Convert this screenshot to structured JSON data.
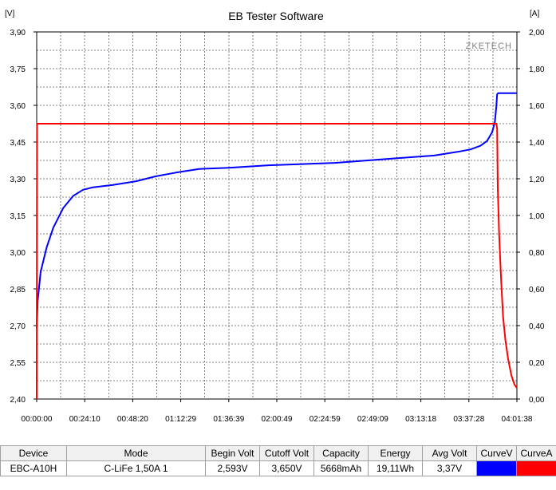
{
  "chart_data": {
    "type": "line",
    "title": "EB Tester Software",
    "brand": "ZKETECH",
    "y_left_unit": "[V]",
    "y_right_unit": "[A]",
    "y_left_range": [
      2.4,
      3.9
    ],
    "y_right_range": [
      0.0,
      2.0
    ],
    "x_range_seconds": [
      0,
      14498
    ],
    "x_tick_labels": [
      "00:00:00",
      "00:24:10",
      "00:48:20",
      "01:12:29",
      "01:36:39",
      "02:00:49",
      "02:24:59",
      "02:49:09",
      "03:13:18",
      "03:37:28",
      "04:01:38"
    ],
    "y_left_tick_labels": [
      "3,90",
      "3,75",
      "3,60",
      "3,45",
      "3,30",
      "3,15",
      "3,00",
      "2,85",
      "2,70",
      "2,55",
      "2,40"
    ],
    "y_right_tick_labels": [
      "2,00",
      "1,80",
      "1,60",
      "1,40",
      "1,20",
      "1,00",
      "0,80",
      "0,60",
      "0,40",
      "0,20",
      "0,00"
    ],
    "grid": true,
    "series": [
      {
        "name": "CurveV",
        "color": "#0000ff",
        "axis": "left",
        "points": [
          [
            0,
            2.69
          ],
          [
            30,
            2.8
          ],
          [
            120,
            2.92
          ],
          [
            300,
            3.02
          ],
          [
            500,
            3.1
          ],
          [
            800,
            3.18
          ],
          [
            1100,
            3.23
          ],
          [
            1400,
            3.255
          ],
          [
            1700,
            3.265
          ],
          [
            2300,
            3.275
          ],
          [
            3000,
            3.29
          ],
          [
            3600,
            3.31
          ],
          [
            4200,
            3.325
          ],
          [
            4900,
            3.34
          ],
          [
            5800,
            3.345
          ],
          [
            7000,
            3.355
          ],
          [
            8000,
            3.36
          ],
          [
            9000,
            3.365
          ],
          [
            10000,
            3.375
          ],
          [
            11000,
            3.385
          ],
          [
            12000,
            3.395
          ],
          [
            12700,
            3.41
          ],
          [
            13100,
            3.42
          ],
          [
            13400,
            3.435
          ],
          [
            13600,
            3.455
          ],
          [
            13750,
            3.49
          ],
          [
            13830,
            3.53
          ],
          [
            13880,
            3.6
          ],
          [
            13900,
            3.645
          ],
          [
            13930,
            3.65
          ],
          [
            14498,
            3.65
          ]
        ]
      },
      {
        "name": "CurveA",
        "color": "#ff0000",
        "axis": "right",
        "points": [
          [
            0,
            0.0
          ],
          [
            10,
            1.5
          ],
          [
            13880,
            1.5
          ],
          [
            13900,
            1.47
          ],
          [
            13920,
            1.15
          ],
          [
            13960,
            0.9
          ],
          [
            14020,
            0.65
          ],
          [
            14080,
            0.45
          ],
          [
            14150,
            0.32
          ],
          [
            14230,
            0.22
          ],
          [
            14330,
            0.13
          ],
          [
            14420,
            0.08
          ],
          [
            14498,
            0.06
          ]
        ]
      }
    ]
  },
  "table": {
    "headers": [
      "Device",
      "Mode",
      "Begin Volt",
      "Cutoff Volt",
      "Capacity",
      "Energy",
      "Avg Volt",
      "CurveV",
      "CurveA"
    ],
    "row": {
      "device": "EBC-A10H",
      "mode": "C-LiFe  1,50A  1",
      "begin_volt": "2,593V",
      "cutoff_volt": "3,650V",
      "capacity": "5668mAh",
      "energy": "19,11Wh",
      "avg_volt": "3,37V",
      "curve_v_color": "#0000ff",
      "curve_a_color": "#ff0000"
    }
  }
}
